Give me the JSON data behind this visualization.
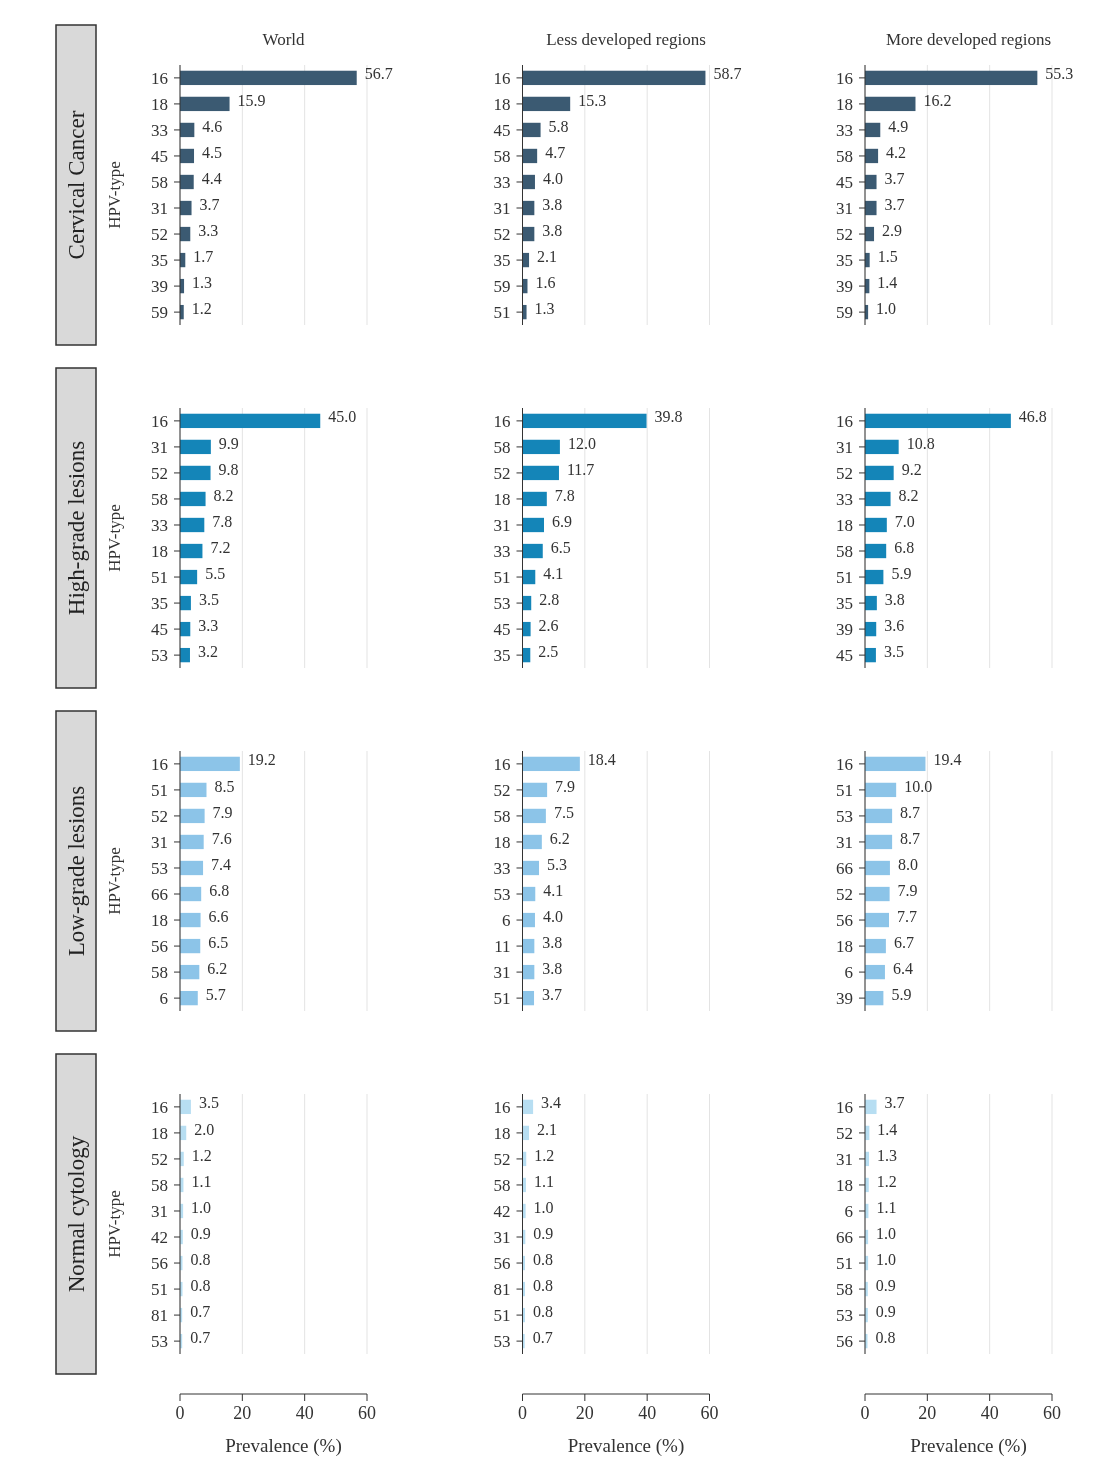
{
  "chart_data": [
    {
      "type": "bar",
      "orientation": "horizontal",
      "title": "World",
      "ylabel": "HPV-type",
      "annotations": [
        "Cervical Cancer"
      ],
      "categories": [
        "16",
        "18",
        "33",
        "45",
        "58",
        "31",
        "52",
        "35",
        "39",
        "59"
      ],
      "values": [
        56.7,
        15.9,
        4.6,
        4.5,
        4.4,
        3.7,
        3.3,
        1.7,
        1.3,
        1.2
      ],
      "value_labels": [
        "56.7",
        "15.9",
        "4.6",
        "4.5",
        "4.4",
        "3.7",
        "3.3",
        "1.7",
        "1.3",
        "1.2"
      ],
      "color": "#3b5a72",
      "xlim": [
        0,
        60
      ],
      "xticks": [
        0,
        20,
        40,
        60
      ],
      "grid": "x",
      "tick_labels": "y"
    },
    {
      "type": "bar",
      "orientation": "horizontal",
      "title": "Less developed regions",
      "categories": [
        "16",
        "18",
        "45",
        "58",
        "33",
        "31",
        "52",
        "35",
        "59",
        "51"
      ],
      "values": [
        58.7,
        15.3,
        5.8,
        4.7,
        4.0,
        3.8,
        3.8,
        2.1,
        1.6,
        1.3
      ],
      "value_labels": [
        "58.7",
        "15.3",
        "5.8",
        "4.7",
        "4.0",
        "3.8",
        "3.8",
        "2.1",
        "1.6",
        "1.3"
      ],
      "color": "#3b5a72",
      "xlim": [
        0,
        60
      ],
      "xticks": [
        0,
        20,
        40,
        60
      ],
      "grid": "x",
      "tick_labels": "y"
    },
    {
      "type": "bar",
      "orientation": "horizontal",
      "title": "More developed regions",
      "categories": [
        "16",
        "18",
        "33",
        "58",
        "45",
        "31",
        "52",
        "35",
        "39",
        "59"
      ],
      "values": [
        55.3,
        16.2,
        4.9,
        4.2,
        3.7,
        3.7,
        2.9,
        1.5,
        1.4,
        1.0
      ],
      "value_labels": [
        "55.3",
        "16.2",
        "4.9",
        "4.2",
        "3.7",
        "3.7",
        "2.9",
        "1.5",
        "1.4",
        "1.0"
      ],
      "color": "#3b5a72",
      "xlim": [
        0,
        60
      ],
      "xticks": [
        0,
        20,
        40,
        60
      ],
      "grid": "x",
      "tick_labels": "y"
    },
    {
      "type": "bar",
      "orientation": "horizontal",
      "ylabel": "HPV-type",
      "annotations": [
        "High-grade lesions"
      ],
      "categories": [
        "16",
        "31",
        "52",
        "58",
        "33",
        "18",
        "51",
        "35",
        "45",
        "53"
      ],
      "values": [
        45.0,
        9.9,
        9.8,
        8.2,
        7.8,
        7.2,
        5.5,
        3.5,
        3.3,
        3.2
      ],
      "value_labels": [
        "45.0",
        "9.9",
        "9.8",
        "8.2",
        "7.8",
        "7.2",
        "5.5",
        "3.5",
        "3.3",
        "3.2"
      ],
      "color": "#1485b8",
      "xlim": [
        0,
        60
      ],
      "xticks": [
        0,
        20,
        40,
        60
      ],
      "grid": "x",
      "tick_labels": "y"
    },
    {
      "type": "bar",
      "orientation": "horizontal",
      "categories": [
        "16",
        "58",
        "52",
        "18",
        "31",
        "33",
        "51",
        "53",
        "45",
        "35"
      ],
      "values": [
        39.8,
        12.0,
        11.7,
        7.8,
        6.9,
        6.5,
        4.1,
        2.8,
        2.6,
        2.5
      ],
      "value_labels": [
        "39.8",
        "12.0",
        "11.7",
        "7.8",
        "6.9",
        "6.5",
        "4.1",
        "2.8",
        "2.6",
        "2.5"
      ],
      "color": "#1485b8",
      "xlim": [
        0,
        60
      ],
      "xticks": [
        0,
        20,
        40,
        60
      ],
      "grid": "x",
      "tick_labels": "y"
    },
    {
      "type": "bar",
      "orientation": "horizontal",
      "categories": [
        "16",
        "31",
        "52",
        "33",
        "18",
        "58",
        "51",
        "35",
        "39",
        "45"
      ],
      "values": [
        46.8,
        10.8,
        9.2,
        8.2,
        7.0,
        6.8,
        5.9,
        3.8,
        3.6,
        3.5
      ],
      "value_labels": [
        "46.8",
        "10.8",
        "9.2",
        "8.2",
        "7.0",
        "6.8",
        "5.9",
        "3.8",
        "3.6",
        "3.5"
      ],
      "color": "#1485b8",
      "xlim": [
        0,
        60
      ],
      "xticks": [
        0,
        20,
        40,
        60
      ],
      "grid": "x",
      "tick_labels": "y"
    },
    {
      "type": "bar",
      "orientation": "horizontal",
      "ylabel": "HPV-type",
      "annotations": [
        "Low-grade lesions"
      ],
      "categories": [
        "16",
        "51",
        "52",
        "31",
        "53",
        "66",
        "18",
        "56",
        "58",
        "6"
      ],
      "values": [
        19.2,
        8.5,
        7.9,
        7.6,
        7.4,
        6.8,
        6.6,
        6.5,
        6.2,
        5.7
      ],
      "value_labels": [
        "19.2",
        "8.5",
        "7.9",
        "7.6",
        "7.4",
        "6.8",
        "6.6",
        "6.5",
        "6.2",
        "5.7"
      ],
      "color": "#8cc4e8",
      "xlim": [
        0,
        60
      ],
      "xticks": [
        0,
        20,
        40,
        60
      ],
      "grid": "x",
      "tick_labels": "y"
    },
    {
      "type": "bar",
      "orientation": "horizontal",
      "categories": [
        "16",
        "52",
        "58",
        "18",
        "33",
        "53",
        "6",
        "11",
        "31",
        "51"
      ],
      "values": [
        18.4,
        7.9,
        7.5,
        6.2,
        5.3,
        4.1,
        4.0,
        3.8,
        3.8,
        3.7
      ],
      "value_labels": [
        "18.4",
        "7.9",
        "7.5",
        "6.2",
        "5.3",
        "4.1",
        "4.0",
        "3.8",
        "3.8",
        "3.7"
      ],
      "color": "#8cc4e8",
      "xlim": [
        0,
        60
      ],
      "xticks": [
        0,
        20,
        40,
        60
      ],
      "grid": "x",
      "tick_labels": "y"
    },
    {
      "type": "bar",
      "orientation": "horizontal",
      "categories": [
        "16",
        "51",
        "53",
        "31",
        "66",
        "52",
        "56",
        "18",
        "6",
        "39"
      ],
      "values": [
        19.4,
        10.0,
        8.7,
        8.7,
        8.0,
        7.9,
        7.7,
        6.7,
        6.4,
        5.9
      ],
      "value_labels": [
        "19.4",
        "10.0",
        "8.7",
        "8.7",
        "8.0",
        "7.9",
        "7.7",
        "6.7",
        "6.4",
        "5.9"
      ],
      "color": "#8cc4e8",
      "xlim": [
        0,
        60
      ],
      "xticks": [
        0,
        20,
        40,
        60
      ],
      "grid": "x",
      "tick_labels": "y"
    },
    {
      "type": "bar",
      "orientation": "horizontal",
      "ylabel": "HPV-type",
      "xlabel": "Prevalence (%)",
      "annotations": [
        "Normal cytology"
      ],
      "categories": [
        "16",
        "18",
        "52",
        "58",
        "31",
        "42",
        "56",
        "51",
        "81",
        "53"
      ],
      "values": [
        3.5,
        2.0,
        1.2,
        1.1,
        1.0,
        0.9,
        0.8,
        0.8,
        0.7,
        0.7
      ],
      "value_labels": [
        "3.5",
        "2.0",
        "1.2",
        "1.1",
        "1.0",
        "0.9",
        "0.8",
        "0.8",
        "0.7",
        "0.7"
      ],
      "color": "#b7def2",
      "xlim": [
        0,
        60
      ],
      "xticks": [
        0,
        20,
        40,
        60
      ],
      "grid": "x"
    },
    {
      "type": "bar",
      "orientation": "horizontal",
      "xlabel": "Prevalence (%)",
      "categories": [
        "16",
        "18",
        "52",
        "58",
        "42",
        "31",
        "56",
        "81",
        "51",
        "53"
      ],
      "values": [
        3.4,
        2.1,
        1.2,
        1.1,
        1.0,
        0.9,
        0.8,
        0.8,
        0.8,
        0.7
      ],
      "value_labels": [
        "3.4",
        "2.1",
        "1.2",
        "1.1",
        "1.0",
        "0.9",
        "0.8",
        "0.8",
        "0.8",
        "0.7"
      ],
      "color": "#b7def2",
      "xlim": [
        0,
        60
      ],
      "xticks": [
        0,
        20,
        40,
        60
      ],
      "grid": "x"
    },
    {
      "type": "bar",
      "orientation": "horizontal",
      "xlabel": "Prevalence (%)",
      "categories": [
        "16",
        "52",
        "31",
        "18",
        "6",
        "66",
        "51",
        "58",
        "53",
        "56"
      ],
      "values": [
        3.7,
        1.4,
        1.3,
        1.2,
        1.1,
        1.0,
        1.0,
        0.9,
        0.9,
        0.8
      ],
      "value_labels": [
        "3.7",
        "1.4",
        "1.3",
        "1.2",
        "1.1",
        "1.0",
        "1.0",
        "0.9",
        "0.9",
        "0.8"
      ],
      "color": "#b7def2",
      "xlim": [
        0,
        60
      ],
      "xticks": [
        0,
        20,
        40,
        60
      ],
      "grid": "x"
    }
  ]
}
